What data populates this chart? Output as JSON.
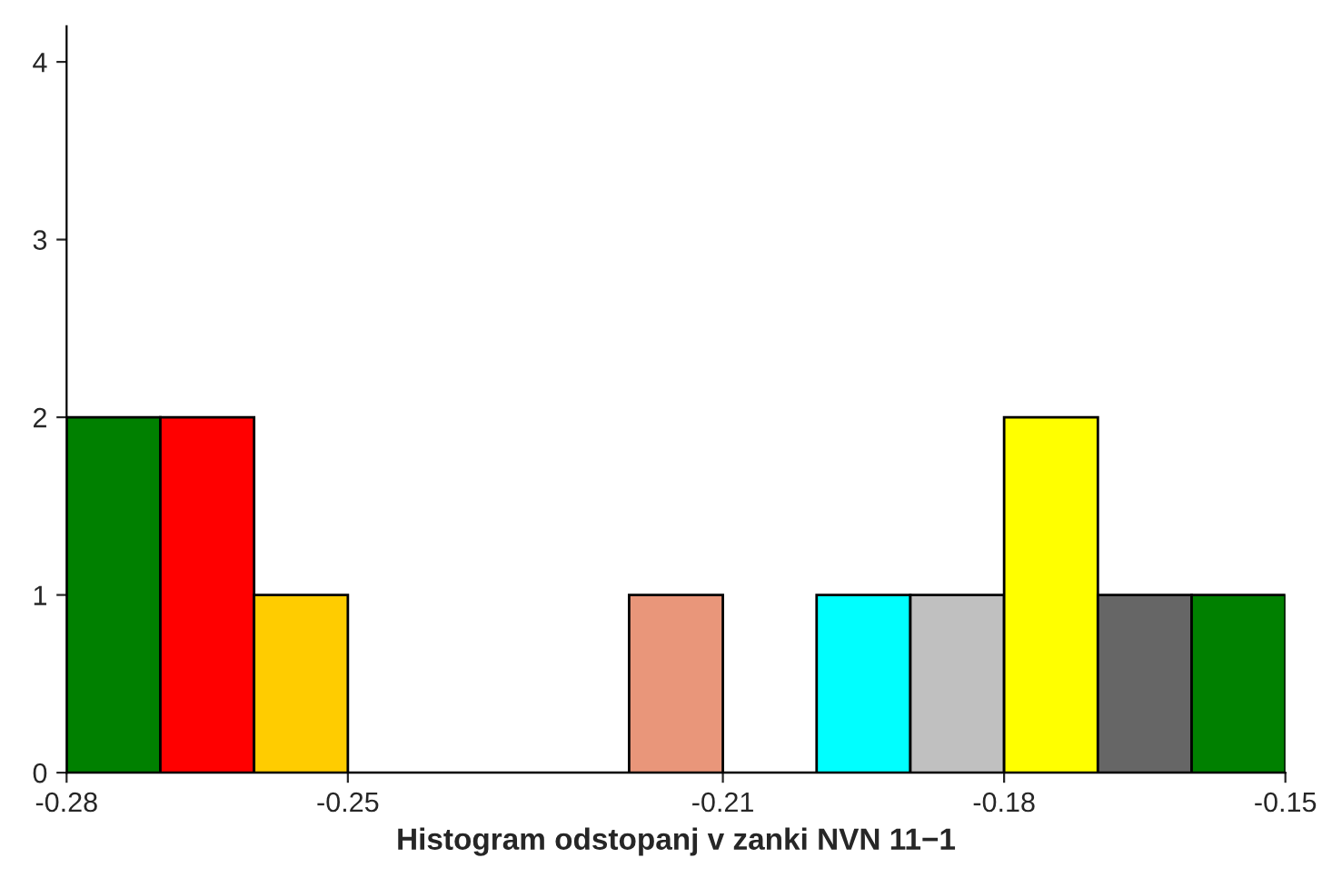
{
  "chart_data": {
    "type": "histogram",
    "xlabel": "Histogram odstopanj v zanki NVN 11−1",
    "bins": [
      -0.28,
      -0.27,
      -0.26,
      -0.25,
      -0.24,
      -0.23,
      -0.22,
      -0.21,
      -0.2,
      -0.19,
      -0.18,
      -0.17,
      -0.16,
      -0.15
    ],
    "values": [
      2,
      2,
      1,
      0,
      0,
      0,
      1,
      0,
      1,
      1,
      2,
      1,
      1
    ],
    "colors": [
      "#008000",
      "#ff0000",
      "#ffcc00",
      null,
      null,
      null,
      "#e9967a",
      null,
      "#00ffff",
      "#c0c0c0",
      "#ffff00",
      "#666666",
      "#008000"
    ],
    "xlim": [
      -0.28,
      -0.15
    ],
    "xticks": [
      -0.28,
      -0.25,
      -0.21,
      -0.18,
      -0.15
    ],
    "ylim": [
      0,
      4.2
    ],
    "yticks": [
      0,
      1,
      2,
      3,
      4
    ],
    "grid": false,
    "legend": false
  }
}
